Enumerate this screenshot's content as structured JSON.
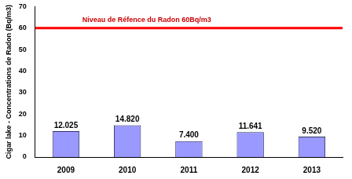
{
  "chart_data": {
    "type": "bar",
    "y_label": "Cigar lake - Concentrations de Radon (Bq/m3)",
    "categories": [
      "2009",
      "2010",
      "2011",
      "2012",
      "2013"
    ],
    "values": [
      12.025,
      14.82,
      7.4,
      11.641,
      9.52
    ],
    "value_labels": [
      "12.025",
      "14.820",
      "7.400",
      "11.641",
      "9.520"
    ],
    "color": "#9999ff",
    "ylim": [
      0,
      70
    ],
    "yticks": [
      0,
      10,
      20,
      30,
      40,
      50,
      60,
      70
    ],
    "grid": false,
    "data_labels": true,
    "reference_line": {
      "value": 60,
      "label": "Niveau de Réfence du Radon 60Bq/m3"
    }
  }
}
